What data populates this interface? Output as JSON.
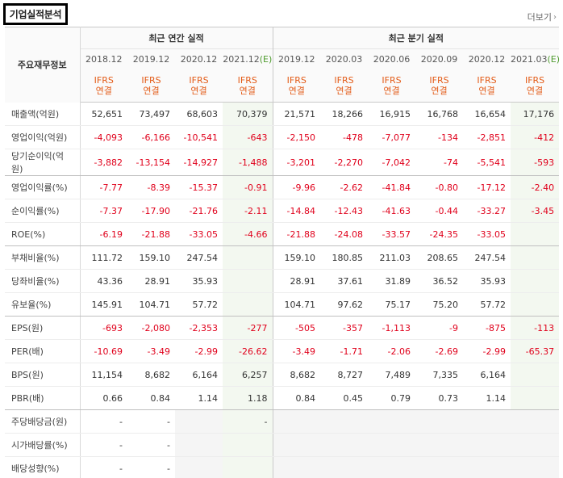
{
  "title": "기업실적분석",
  "more_label": "더보기",
  "header": {
    "label_column": "주요재무정보",
    "annual_group": "최근 연간 실적",
    "quarter_group": "최근 분기 실적",
    "annual_periods": [
      {
        "text": "2018.12",
        "estimate": false
      },
      {
        "text": "2019.12",
        "estimate": false
      },
      {
        "text": "2020.12",
        "estimate": false
      },
      {
        "text": "2021.12(E)",
        "estimate": true
      }
    ],
    "quarter_periods": [
      {
        "text": "2019.12",
        "estimate": false
      },
      {
        "text": "2020.03",
        "estimate": false
      },
      {
        "text": "2020.06",
        "estimate": false
      },
      {
        "text": "2020.09",
        "estimate": false
      },
      {
        "text": "2020.12",
        "estimate": false
      },
      {
        "text": "2021.03(E)",
        "estimate": true
      }
    ],
    "basis_top": "IFRS",
    "basis_bottom": "연결"
  },
  "rows": [
    {
      "label": "매출액(억원)",
      "values": [
        "52,651",
        "73,497",
        "68,603",
        "70,379",
        "21,571",
        "18,266",
        "16,915",
        "16,768",
        "16,654",
        "17,176"
      ]
    },
    {
      "label": "영업이익(억원)",
      "values": [
        "-4,093",
        "-6,166",
        "-10,541",
        "-643",
        "-2,150",
        "-478",
        "-7,077",
        "-134",
        "-2,851",
        "-412"
      ]
    },
    {
      "label": "당기순이익(억원)",
      "values": [
        "-3,882",
        "-13,154",
        "-14,927",
        "-1,488",
        "-3,201",
        "-2,270",
        "-7,042",
        "-74",
        "-5,541",
        "-593"
      ]
    },
    {
      "label": "영업이익률(%)",
      "values": [
        "-7.77",
        "-8.39",
        "-15.37",
        "-0.91",
        "-9.96",
        "-2.62",
        "-41.84",
        "-0.80",
        "-17.12",
        "-2.40"
      ]
    },
    {
      "label": "순이익률(%)",
      "values": [
        "-7.37",
        "-17.90",
        "-21.76",
        "-2.11",
        "-14.84",
        "-12.43",
        "-41.63",
        "-0.44",
        "-33.27",
        "-3.45"
      ]
    },
    {
      "label": "ROE(%)",
      "values": [
        "-6.19",
        "-21.88",
        "-33.05",
        "-4.66",
        "-21.88",
        "-24.08",
        "-33.57",
        "-24.35",
        "-33.05",
        ""
      ]
    },
    {
      "label": "부채비율(%)",
      "values": [
        "111.72",
        "159.10",
        "247.54",
        "",
        "159.10",
        "180.85",
        "211.03",
        "208.65",
        "247.54",
        ""
      ]
    },
    {
      "label": "당좌비율(%)",
      "values": [
        "43.36",
        "28.91",
        "35.93",
        "",
        "28.91",
        "37.61",
        "31.89",
        "36.52",
        "35.93",
        ""
      ]
    },
    {
      "label": "유보율(%)",
      "values": [
        "145.91",
        "104.71",
        "57.72",
        "",
        "104.71",
        "97.62",
        "75.17",
        "75.20",
        "57.72",
        ""
      ]
    },
    {
      "label": "EPS(원)",
      "values": [
        "-693",
        "-2,080",
        "-2,353",
        "-277",
        "-505",
        "-357",
        "-1,113",
        "-9",
        "-875",
        "-113"
      ]
    },
    {
      "label": "PER(배)",
      "values": [
        "-10.69",
        "-3.49",
        "-2.99",
        "-26.62",
        "-3.49",
        "-1.71",
        "-2.06",
        "-2.69",
        "-2.99",
        "-65.37"
      ]
    },
    {
      "label": "BPS(원)",
      "values": [
        "11,154",
        "8,682",
        "6,164",
        "6,257",
        "8,682",
        "8,727",
        "7,489",
        "7,335",
        "6,164",
        ""
      ]
    },
    {
      "label": "PBR(배)",
      "values": [
        "0.66",
        "0.84",
        "1.14",
        "1.18",
        "0.84",
        "0.45",
        "0.79",
        "0.73",
        "1.14",
        ""
      ]
    },
    {
      "label": "주당배당금(원)",
      "values": [
        "-",
        "-",
        "",
        "-",
        "",
        "",
        "",
        "",
        "",
        ""
      ]
    },
    {
      "label": "시가배당률(%)",
      "values": [
        "-",
        "-",
        "",
        "",
        "",
        "",
        "",
        "",
        "",
        ""
      ]
    },
    {
      "label": "배당성향(%)",
      "values": [
        "-",
        "-",
        "",
        "",
        "",
        "",
        "",
        "",
        "",
        ""
      ]
    }
  ],
  "colors": {
    "negative": "#e0001b",
    "basis": "#e35b17",
    "estimate_bg": "#f3f8f0",
    "estimate_mark": "#4e9b2e"
  }
}
